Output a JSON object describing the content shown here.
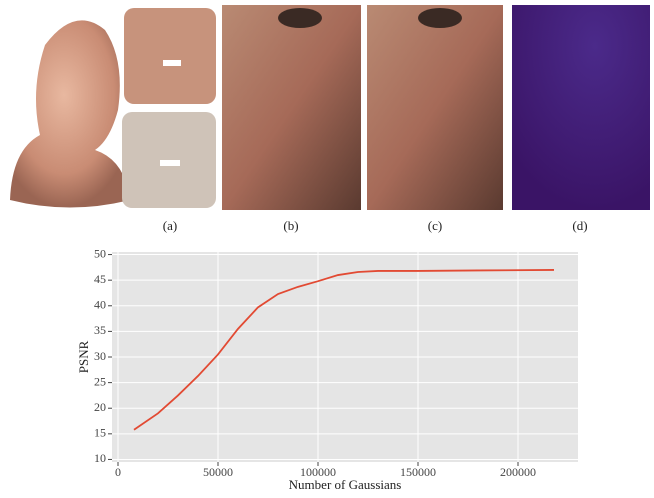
{
  "panels": [
    {
      "caption": "(a)"
    },
    {
      "caption": "(b)"
    },
    {
      "caption": "(c)"
    },
    {
      "caption": "(d)"
    }
  ],
  "chart_data": {
    "type": "line",
    "x_label": "Number of Gaussians",
    "y_label": "PSNR",
    "x": [
      8000,
      20000,
      30000,
      40000,
      50000,
      60000,
      70000,
      80000,
      90000,
      100000,
      110000,
      120000,
      130000,
      150000,
      180000,
      218000
    ],
    "series": [
      {
        "name": "PSNR",
        "color": "#e24a33",
        "values": [
          15.8,
          19,
          22.5,
          26.3,
          30.5,
          35.5,
          39.7,
          42.3,
          43.7,
          44.8,
          46,
          46.6,
          46.8,
          46.8,
          46.9,
          47
        ]
      }
    ],
    "xlim": [
      -3000,
      230000
    ],
    "xticks": [
      0,
      50000,
      100000,
      150000,
      200000
    ],
    "ylim": [
      9.5,
      50.5
    ],
    "yticks": [
      10,
      15,
      20,
      25,
      30,
      35,
      40,
      45,
      50
    ],
    "grid": true
  }
}
